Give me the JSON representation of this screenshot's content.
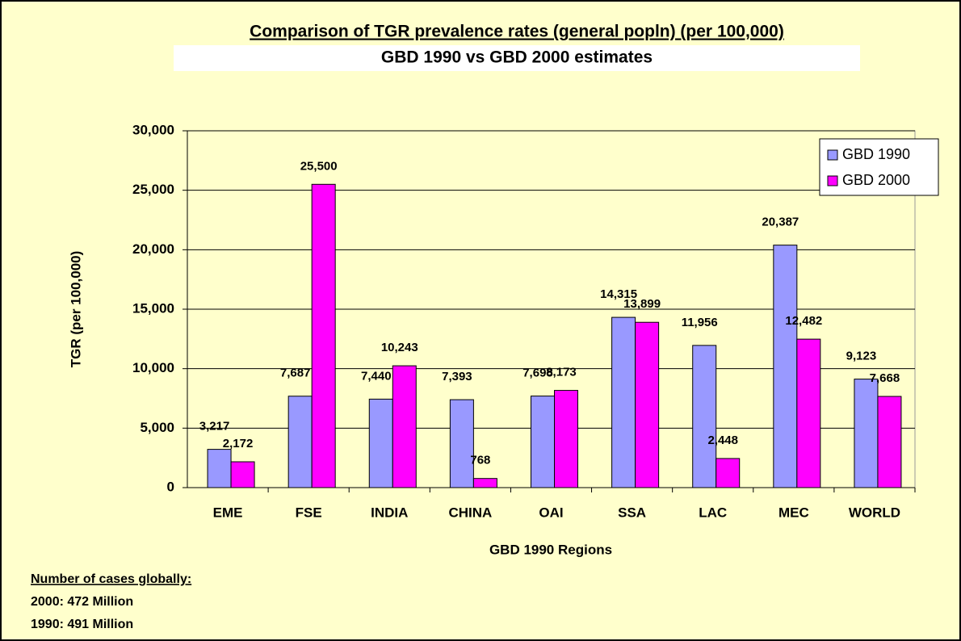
{
  "chart_data": {
    "type": "bar",
    "title": "Comparison of TGR prevalence rates  (general popln) (per 100,000)",
    "subtitle": "GBD 1990 vs GBD 2000 estimates",
    "y_label": "TGR (per 100,000)",
    "x_label": "GBD 1990 Regions",
    "categories": [
      "EME",
      "FSE",
      "INDIA",
      "CHINA",
      "OAI",
      "SSA",
      "LAC",
      "MEC",
      "WORLD"
    ],
    "series": [
      {
        "name": "GBD 1990",
        "color": "#9999ff",
        "values": [
          3217,
          7687,
          7440,
          7393,
          7698,
          14315,
          11956,
          20387,
          9123
        ],
        "value_labels": [
          "3,217",
          "7,687",
          "7,440",
          "7,393",
          "7,698",
          "14,315",
          "11,956",
          "20,387",
          "9,123"
        ]
      },
      {
        "name": "GBD 2000",
        "color": "#ff00ff",
        "values": [
          2172,
          25500,
          10243,
          768,
          8173,
          13899,
          2448,
          12482,
          7668
        ],
        "value_labels": [
          "2,172",
          "25,500",
          "10,243",
          "768",
          "8,173",
          "13,899",
          "2,448",
          "12,482",
          "7,668"
        ]
      }
    ],
    "ylim": [
      0,
      30000
    ],
    "yticks": [
      0,
      {
        "value": 5000,
        "label": "5,000"
      },
      {
        "value": 10000,
        "label": "10,000"
      },
      {
        "value": 15000,
        "label": "15,000"
      },
      {
        "value": 20000,
        "label": "20,000"
      },
      {
        "value": 25000,
        "label": "25,000"
      },
      {
        "value": 30000,
        "label": "30,000"
      }
    ],
    "grid": true,
    "legend": "top-right",
    "notes": {
      "heading": "Number of cases globally:",
      "lines": [
        "2000: 472 Million",
        "1990:  491 Million"
      ]
    }
  }
}
